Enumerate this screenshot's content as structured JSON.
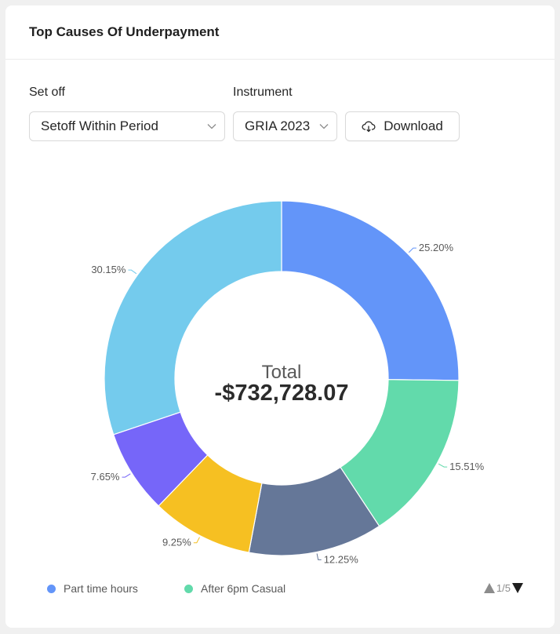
{
  "card": {
    "title": "Top Causes Of Underpayment"
  },
  "filters": {
    "setoff": {
      "label": "Set off",
      "value": "Setoff Within Period"
    },
    "instrument": {
      "label": "Instrument",
      "value": "GRIA 2023"
    },
    "download_label": "Download"
  },
  "chart_data": {
    "type": "pie",
    "variant": "donut",
    "center": {
      "label": "Total",
      "value": "-$732,728.07"
    },
    "slices": [
      {
        "name": "Part time hours",
        "percent": 25.2,
        "label": "25.20%",
        "color": "#6395f9"
      },
      {
        "name": "After 6pm Casual",
        "percent": 15.51,
        "label": "15.51%",
        "color": "#62daab"
      },
      {
        "name": "",
        "percent": 12.25,
        "label": "12.25%",
        "color": "#657798"
      },
      {
        "name": "",
        "percent": 9.25,
        "label": "9.25%",
        "color": "#f6c022"
      },
      {
        "name": "",
        "percent": 7.65,
        "label": "7.65%",
        "color": "#7666f9"
      },
      {
        "name": "",
        "percent": 30.15,
        "label": "30.15%",
        "color": "#74cbed"
      }
    ],
    "legend_position": "bottom"
  },
  "legend": {
    "items": [
      {
        "label": "Part time hours",
        "color": "#6395f9"
      },
      {
        "label": "After 6pm Casual",
        "color": "#62daab"
      }
    ],
    "pager": "1/5"
  }
}
